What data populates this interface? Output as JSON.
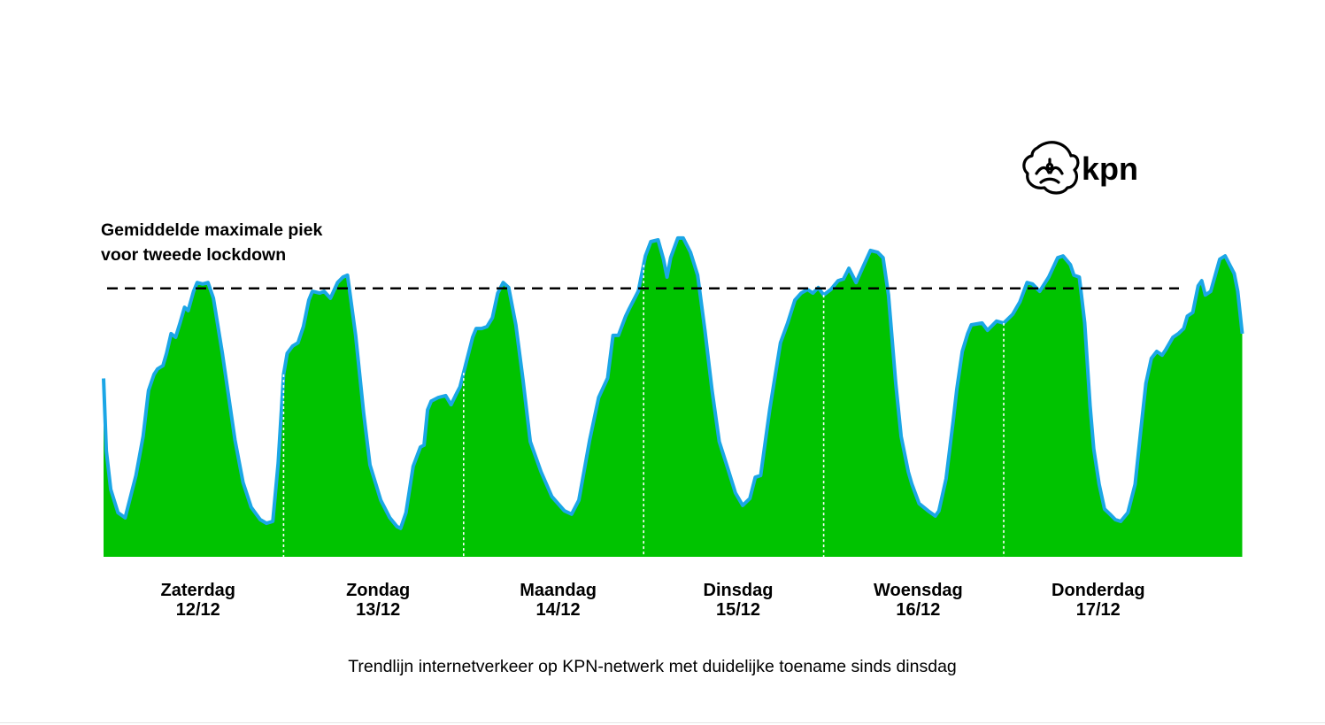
{
  "brand": {
    "logo_text": "kpn"
  },
  "colors": {
    "fill": "#00c300",
    "stroke": "#1ba6e6",
    "reference": "#000000",
    "separator": "#ffffff"
  },
  "chart_data": {
    "type": "area",
    "title": "",
    "caption": "Trendlijn internetverkeer op KPN-netwerk met duidelijke toename sinds dinsdag",
    "xlabel": "",
    "ylabel": "",
    "ylim": [
      0,
      100
    ],
    "grid": false,
    "legend": "none",
    "days": [
      {
        "name": "Zaterdag",
        "date": "12/12"
      },
      {
        "name": "Zondag",
        "date": "13/12"
      },
      {
        "name": "Maandag",
        "date": "14/12"
      },
      {
        "name": "Dinsdag",
        "date": "15/12"
      },
      {
        "name": "Woensdag",
        "date": "16/12"
      },
      {
        "name": "Donderdag",
        "date": "17/12"
      }
    ],
    "reference_line": {
      "label_line1": "Gemiddelde maximale piek",
      "label_line2": "voor tweede lockdown",
      "value": 73.6,
      "style": "dashed"
    },
    "series": [
      {
        "x_unit": "day",
        "points": [
          [
            0.0,
            48.9
          ],
          [
            0.015,
            29.1
          ],
          [
            0.04,
            18.5
          ],
          [
            0.08,
            12.1
          ],
          [
            0.12,
            10.7
          ],
          [
            0.18,
            22.3
          ],
          [
            0.22,
            33.0
          ],
          [
            0.25,
            45.6
          ],
          [
            0.28,
            50.0
          ],
          [
            0.3,
            51.5
          ],
          [
            0.33,
            52.4
          ],
          [
            0.35,
            55.8
          ],
          [
            0.375,
            61.2
          ],
          [
            0.4,
            60.2
          ],
          [
            0.425,
            64.1
          ],
          [
            0.45,
            68.4
          ],
          [
            0.47,
            67.5
          ],
          [
            0.5,
            72.8
          ],
          [
            0.52,
            75.2
          ],
          [
            0.55,
            74.8
          ],
          [
            0.58,
            75.2
          ],
          [
            0.61,
            70.9
          ],
          [
            0.66,
            55.8
          ],
          [
            0.73,
            32.0
          ],
          [
            0.775,
            20.4
          ],
          [
            0.82,
            13.6
          ],
          [
            0.87,
            10.2
          ],
          [
            0.905,
            9.2
          ],
          [
            0.94,
            9.7
          ],
          [
            0.97,
            25.7
          ],
          [
            1.0,
            50.0
          ],
          [
            1.02,
            55.8
          ],
          [
            1.05,
            57.8
          ],
          [
            1.08,
            58.7
          ],
          [
            1.11,
            63.1
          ],
          [
            1.14,
            70.4
          ],
          [
            1.16,
            72.8
          ],
          [
            1.2,
            72.3
          ],
          [
            1.225,
            72.8
          ],
          [
            1.26,
            70.9
          ],
          [
            1.3,
            75.2
          ],
          [
            1.33,
            76.7
          ],
          [
            1.355,
            77.2
          ],
          [
            1.4,
            60.7
          ],
          [
            1.445,
            39.3
          ],
          [
            1.48,
            25.2
          ],
          [
            1.54,
            15.5
          ],
          [
            1.59,
            10.7
          ],
          [
            1.63,
            8.3
          ],
          [
            1.65,
            7.8
          ],
          [
            1.68,
            12.1
          ],
          [
            1.72,
            24.8
          ],
          [
            1.76,
            30.1
          ],
          [
            1.78,
            30.6
          ],
          [
            1.8,
            40.3
          ],
          [
            1.82,
            42.7
          ],
          [
            1.86,
            43.7
          ],
          [
            1.9,
            44.2
          ],
          [
            1.93,
            41.7
          ],
          [
            1.96,
            44.7
          ],
          [
            1.98,
            46.6
          ],
          [
            2.01,
            52.4
          ],
          [
            2.05,
            60.2
          ],
          [
            2.07,
            62.6
          ],
          [
            2.1,
            62.6
          ],
          [
            2.13,
            63.1
          ],
          [
            2.16,
            65.5
          ],
          [
            2.19,
            72.3
          ],
          [
            2.22,
            75.2
          ],
          [
            2.25,
            73.8
          ],
          [
            2.29,
            63.6
          ],
          [
            2.33,
            48.5
          ],
          [
            2.37,
            31.6
          ],
          [
            2.43,
            23.3
          ],
          [
            2.49,
            16.5
          ],
          [
            2.56,
            12.6
          ],
          [
            2.6,
            11.7
          ],
          [
            2.64,
            15.5
          ],
          [
            2.7,
            32.0
          ],
          [
            2.75,
            43.7
          ],
          [
            2.8,
            49.0
          ],
          [
            2.83,
            60.7
          ],
          [
            2.86,
            60.7
          ],
          [
            2.9,
            66.0
          ],
          [
            2.92,
            68.0
          ],
          [
            2.97,
            72.8
          ],
          [
            3.01,
            82.5
          ],
          [
            3.04,
            86.4
          ],
          [
            3.08,
            86.9
          ],
          [
            3.11,
            81.6
          ],
          [
            3.13,
            76.7
          ],
          [
            3.15,
            82.0
          ],
          [
            3.19,
            87.4
          ],
          [
            3.22,
            87.4
          ],
          [
            3.26,
            83.5
          ],
          [
            3.3,
            77.2
          ],
          [
            3.34,
            62.1
          ],
          [
            3.38,
            45.6
          ],
          [
            3.42,
            31.6
          ],
          [
            3.47,
            23.8
          ],
          [
            3.51,
            17.5
          ],
          [
            3.55,
            14.1
          ],
          [
            3.59,
            16.0
          ],
          [
            3.62,
            21.8
          ],
          [
            3.65,
            22.3
          ],
          [
            3.7,
            40.3
          ],
          [
            3.76,
            58.7
          ],
          [
            3.8,
            64.1
          ],
          [
            3.84,
            70.4
          ],
          [
            3.875,
            72.3
          ],
          [
            3.91,
            73.3
          ],
          [
            3.94,
            72.3
          ],
          [
            3.97,
            73.8
          ],
          [
            4.0,
            71.8
          ],
          [
            4.04,
            73.3
          ],
          [
            4.08,
            75.7
          ],
          [
            4.11,
            76.2
          ],
          [
            4.14,
            79.1
          ],
          [
            4.18,
            75.2
          ],
          [
            4.22,
            79.6
          ],
          [
            4.26,
            84.0
          ],
          [
            4.3,
            83.5
          ],
          [
            4.33,
            82.0
          ],
          [
            4.36,
            71.8
          ],
          [
            4.4,
            47.6
          ],
          [
            4.43,
            33.0
          ],
          [
            4.47,
            23.3
          ],
          [
            4.49,
            19.9
          ],
          [
            4.53,
            14.6
          ],
          [
            4.58,
            12.6
          ],
          [
            4.62,
            11.2
          ],
          [
            4.64,
            12.6
          ],
          [
            4.68,
            21.4
          ],
          [
            4.72,
            37.4
          ],
          [
            4.74,
            46.1
          ],
          [
            4.77,
            56.3
          ],
          [
            4.8,
            61.2
          ],
          [
            4.82,
            63.6
          ],
          [
            4.88,
            64.1
          ],
          [
            4.91,
            62.1
          ],
          [
            4.96,
            64.6
          ],
          [
            5.0,
            64.1
          ],
          [
            5.05,
            66.5
          ],
          [
            5.09,
            69.9
          ],
          [
            5.13,
            75.2
          ],
          [
            5.16,
            74.8
          ],
          [
            5.2,
            72.8
          ],
          [
            5.25,
            76.7
          ],
          [
            5.3,
            82.0
          ],
          [
            5.33,
            82.5
          ],
          [
            5.37,
            80.1
          ],
          [
            5.39,
            77.2
          ],
          [
            5.42,
            76.7
          ],
          [
            5.45,
            64.1
          ],
          [
            5.48,
            41.3
          ],
          [
            5.5,
            29.6
          ],
          [
            5.53,
            19.9
          ],
          [
            5.56,
            13.1
          ],
          [
            5.59,
            11.7
          ],
          [
            5.62,
            10.2
          ],
          [
            5.65,
            9.7
          ],
          [
            5.69,
            12.1
          ],
          [
            5.73,
            19.9
          ],
          [
            5.76,
            34.0
          ],
          [
            5.79,
            47.6
          ],
          [
            5.82,
            54.4
          ],
          [
            5.85,
            56.3
          ],
          [
            5.88,
            55.3
          ],
          [
            5.9,
            56.8
          ],
          [
            5.94,
            60.2
          ],
          [
            5.97,
            61.2
          ],
          [
            6.0,
            62.6
          ],
          [
            6.02,
            66.0
          ],
          [
            6.05,
            67.0
          ],
          [
            6.08,
            74.3
          ],
          [
            6.1,
            75.7
          ],
          [
            6.12,
            71.8
          ],
          [
            6.15,
            72.8
          ],
          [
            6.175,
            77.2
          ],
          [
            6.2,
            81.6
          ],
          [
            6.23,
            82.5
          ],
          [
            6.26,
            79.6
          ],
          [
            6.28,
            77.7
          ],
          [
            6.3,
            72.8
          ],
          [
            6.325,
            61.2
          ]
        ]
      }
    ]
  }
}
